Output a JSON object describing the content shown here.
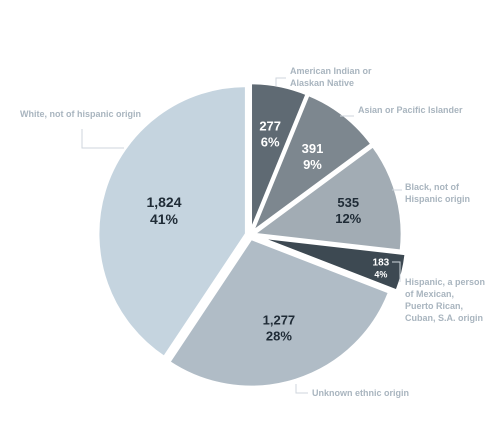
{
  "chart_data": {
    "type": "pie",
    "slices": [
      {
        "category": "American Indian or Alaskan Native",
        "legend_lines": [
          "American Indian or",
          "Alaskan Native"
        ],
        "value": 277,
        "value_label": "277",
        "percent_label": "6%",
        "color": "#5f6a73",
        "label_color": "#ffffff"
      },
      {
        "category": "Asian or Pacific Islander",
        "legend_lines": [
          "Asian or Pacific Islander"
        ],
        "value": 391,
        "value_label": "391",
        "percent_label": "9%",
        "color": "#7d878f",
        "label_color": "#ffffff"
      },
      {
        "category": "Black, not of Hispanic origin",
        "legend_lines": [
          "Black, not of",
          "Hispanic origin"
        ],
        "value": 535,
        "value_label": "535",
        "percent_label": "12%",
        "color": "#a2acb4",
        "label_color": "#1f2b36"
      },
      {
        "category": "Hispanic, a person of Mexican, Puerto Rican, Cuban, S.A. origin",
        "legend_lines": [
          "Hispanic, a person",
          "of Mexican,",
          "Puerto Rican,",
          "Cuban, S.A. origin"
        ],
        "value": 183,
        "value_label": "183",
        "percent_label": "4%",
        "color": "#3d4952",
        "label_color": "#ffffff"
      },
      {
        "category": "Unknown ethnic origin",
        "legend_lines": [
          "Unknown ethnic origin"
        ],
        "value": 1277,
        "value_label": "1,277",
        "percent_label": "28%",
        "color": "#b0bcc6",
        "label_color": "#1f2b36"
      },
      {
        "category": "White, not of hispanic origin",
        "legend_lines": [
          "White, not of hispanic origin"
        ],
        "value": 1824,
        "value_label": "1,824",
        "percent_label": "41%",
        "color": "#c5d4df",
        "label_color": "#1f2b36"
      }
    ]
  }
}
